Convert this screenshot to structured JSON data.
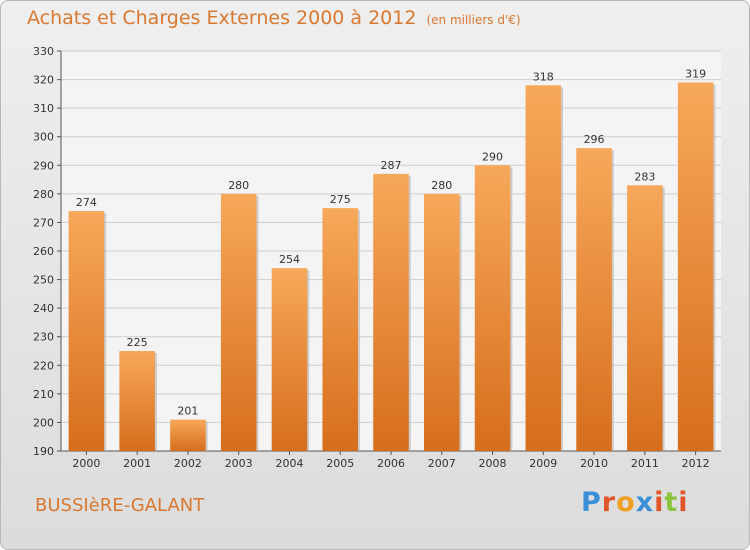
{
  "header": {
    "title": "Achats et Charges Externes 2000 à 2012",
    "unit": "(en milliers d'€)"
  },
  "footer": {
    "place": "BUSSIèRE-GALANT",
    "logo_text": "Proxiti",
    "logo_colors": [
      "#3a8fd6",
      "#e0562a",
      "#f0a020",
      "#3a8fd6",
      "#e0562a",
      "#8bc53f",
      "#e0562a"
    ]
  },
  "colors": {
    "bar": "#e8822a",
    "bar_light": "#f7a85a",
    "accent_text": "#d9782f"
  },
  "chart_data": {
    "type": "bar",
    "title": "Achats et Charges Externes 2000 à 2012",
    "subtitle": "(en milliers d'€)",
    "categories": [
      "2000",
      "2001",
      "2002",
      "2003",
      "2004",
      "2005",
      "2006",
      "2007",
      "2008",
      "2009",
      "2010",
      "2011",
      "2012"
    ],
    "values": [
      274,
      225,
      201,
      280,
      254,
      275,
      287,
      280,
      290,
      318,
      296,
      283,
      319
    ],
    "ylim": [
      190,
      330
    ],
    "yticks": [
      190,
      200,
      210,
      220,
      230,
      240,
      250,
      260,
      270,
      280,
      290,
      300,
      310,
      320,
      330
    ],
    "grid": true,
    "data_labels": true,
    "legend": "none"
  }
}
